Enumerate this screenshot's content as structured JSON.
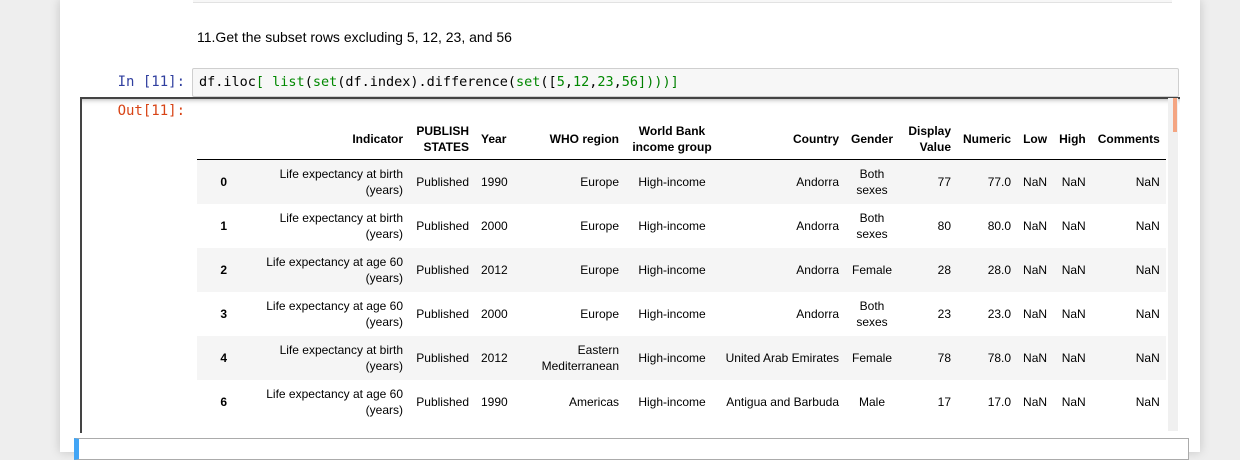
{
  "markdown": {
    "text": "11.Get the subset rows excluding 5, 12, 23, and 56"
  },
  "cell": {
    "in_prompt": "In [11]:",
    "out_prompt": "Out[11]:",
    "code_parts": [
      "df.iloc",
      "[ ",
      "list",
      "(",
      "set",
      "(df.index).difference(",
      "set",
      "([",
      "5",
      ",",
      "12",
      ",",
      "23",
      ",",
      "56",
      "]))",
      ")]"
    ]
  },
  "table": {
    "columns": [
      "",
      "Indicator",
      "PUBLISH STATES",
      "Year",
      "WHO region",
      "World Bank income group",
      "Country",
      "Gender",
      "Display Value",
      "Numeric",
      "Low",
      "High",
      "Comments"
    ],
    "rows": [
      [
        "0",
        "Life expectancy at birth (years)",
        "Published",
        "1990",
        "Europe",
        "High-income",
        "Andorra",
        "Both sexes",
        "77",
        "77.0",
        "NaN",
        "NaN",
        "NaN"
      ],
      [
        "1",
        "Life expectancy at birth (years)",
        "Published",
        "2000",
        "Europe",
        "High-income",
        "Andorra",
        "Both sexes",
        "80",
        "80.0",
        "NaN",
        "NaN",
        "NaN"
      ],
      [
        "2",
        "Life expectancy at age 60 (years)",
        "Published",
        "2012",
        "Europe",
        "High-income",
        "Andorra",
        "Female",
        "28",
        "28.0",
        "NaN",
        "NaN",
        "NaN"
      ],
      [
        "3",
        "Life expectancy at age 60 (years)",
        "Published",
        "2000",
        "Europe",
        "High-income",
        "Andorra",
        "Both sexes",
        "23",
        "23.0",
        "NaN",
        "NaN",
        "NaN"
      ],
      [
        "4",
        "Life expectancy at birth (years)",
        "Published",
        "2012",
        "Eastern Mediterranean",
        "High-income",
        "United Arab Emirates",
        "Female",
        "78",
        "78.0",
        "NaN",
        "NaN",
        "NaN"
      ],
      [
        "6",
        "Life expectancy at age 60 (years)",
        "Published",
        "1990",
        "Americas",
        "High-income",
        "Antigua and Barbuda",
        "Male",
        "17",
        "17.0",
        "NaN",
        "NaN",
        "NaN"
      ]
    ]
  }
}
